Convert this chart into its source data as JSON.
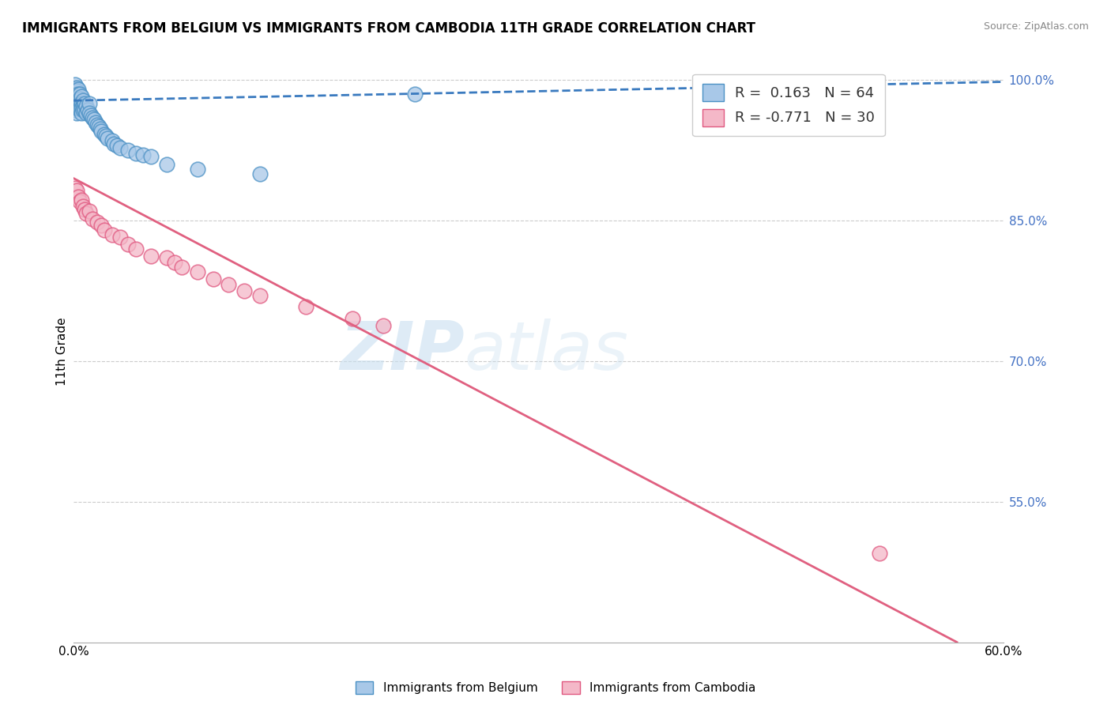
{
  "title": "IMMIGRANTS FROM BELGIUM VS IMMIGRANTS FROM CAMBODIA 11TH GRADE CORRELATION CHART",
  "source": "Source: ZipAtlas.com",
  "ylabel": "11th Grade",
  "xlabel_belgium": "Immigrants from Belgium",
  "xlabel_cambodia": "Immigrants from Cambodia",
  "xlim": [
    0.0,
    0.6
  ],
  "ylim": [
    0.4,
    1.02
  ],
  "ytick_positions": [
    0.55,
    0.7,
    0.85,
    1.0
  ],
  "ytick_labels": [
    "55.0%",
    "70.0%",
    "85.0%",
    "100.0%"
  ],
  "belgium_R": 0.163,
  "belgium_N": 64,
  "cambodia_R": -0.771,
  "cambodia_N": 30,
  "belgium_color": "#a8c8e8",
  "cambodia_color": "#f4b8c8",
  "belgium_edge_color": "#4a90c4",
  "cambodia_edge_color": "#e05880",
  "belgium_line_color": "#3a7abf",
  "cambodia_line_color": "#e06080",
  "watermark_zip": "ZIP",
  "watermark_atlas": "atlas",
  "belgium_x": [
    0.0,
    0.001,
    0.001,
    0.001,
    0.001,
    0.001,
    0.001,
    0.001,
    0.001,
    0.001,
    0.001,
    0.002,
    0.002,
    0.002,
    0.002,
    0.002,
    0.002,
    0.002,
    0.003,
    0.003,
    0.003,
    0.003,
    0.003,
    0.004,
    0.004,
    0.004,
    0.004,
    0.005,
    0.005,
    0.005,
    0.005,
    0.006,
    0.006,
    0.006,
    0.007,
    0.007,
    0.008,
    0.008,
    0.009,
    0.01,
    0.01,
    0.011,
    0.012,
    0.013,
    0.014,
    0.015,
    0.016,
    0.017,
    0.018,
    0.02,
    0.021,
    0.022,
    0.025,
    0.026,
    0.028,
    0.03,
    0.035,
    0.04,
    0.045,
    0.05,
    0.06,
    0.08,
    0.12,
    0.22
  ],
  "belgium_y": [
    0.99,
    0.995,
    0.99,
    0.988,
    0.985,
    0.982,
    0.978,
    0.975,
    0.972,
    0.97,
    0.968,
    0.992,
    0.988,
    0.985,
    0.98,
    0.975,
    0.97,
    0.965,
    0.99,
    0.985,
    0.98,
    0.975,
    0.97,
    0.985,
    0.98,
    0.975,
    0.97,
    0.982,
    0.975,
    0.97,
    0.965,
    0.978,
    0.972,
    0.968,
    0.975,
    0.968,
    0.972,
    0.965,
    0.968,
    0.975,
    0.965,
    0.962,
    0.96,
    0.958,
    0.955,
    0.952,
    0.95,
    0.948,
    0.945,
    0.942,
    0.94,
    0.938,
    0.935,
    0.932,
    0.93,
    0.928,
    0.925,
    0.922,
    0.92,
    0.918,
    0.91,
    0.905,
    0.9,
    0.985
  ],
  "cambodia_x": [
    0.001,
    0.002,
    0.003,
    0.004,
    0.005,
    0.006,
    0.007,
    0.008,
    0.01,
    0.012,
    0.015,
    0.018,
    0.02,
    0.025,
    0.03,
    0.035,
    0.04,
    0.05,
    0.06,
    0.065,
    0.07,
    0.08,
    0.09,
    0.1,
    0.11,
    0.12,
    0.15,
    0.18,
    0.2,
    0.52
  ],
  "cambodia_y": [
    0.885,
    0.882,
    0.875,
    0.87,
    0.872,
    0.865,
    0.862,
    0.858,
    0.86,
    0.852,
    0.848,
    0.845,
    0.84,
    0.835,
    0.832,
    0.825,
    0.82,
    0.812,
    0.81,
    0.805,
    0.8,
    0.795,
    0.788,
    0.782,
    0.775,
    0.77,
    0.758,
    0.745,
    0.738,
    0.495
  ],
  "belgium_trend_x": [
    0.0,
    0.6
  ],
  "belgium_trend_y": [
    0.978,
    0.998
  ],
  "cambodia_trend_x": [
    0.0,
    0.57
  ],
  "cambodia_trend_y": [
    0.895,
    0.4
  ]
}
